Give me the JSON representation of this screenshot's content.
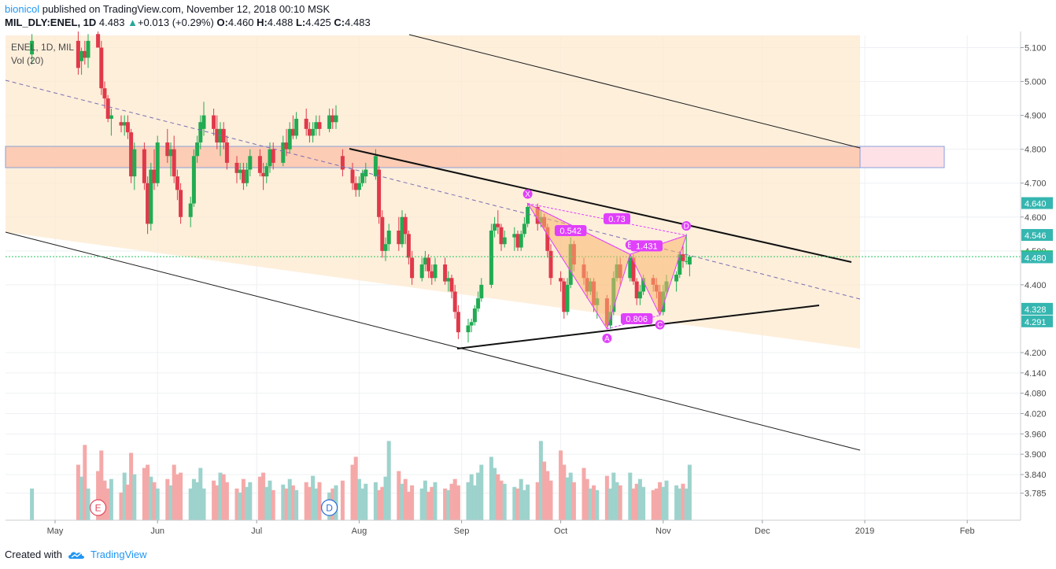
{
  "header": {
    "user": "bionicol",
    "published": "published on TradingView.com, November 12, 2018 00:10 MSK",
    "symbol": "MIL_DLY:ENEL, 1D",
    "last": "4.483",
    "change": "+0.013 (+0.29%)",
    "o_label": "O:",
    "o": "4.460",
    "h_label": "H:",
    "h": "4.488",
    "l_label": "L:",
    "l": "4.425",
    "c_label": "C:",
    "c": "4.483"
  },
  "footer": {
    "created": "Created with",
    "brand": "TradingView"
  },
  "chart_data": {
    "type": "candlestick",
    "legend": {
      "series": "ENEL, 1D, MIL",
      "volume": "Vol (20)"
    },
    "y_ticks": [
      "5.100",
      "5.000",
      "4.900",
      "4.800",
      "4.700",
      "4.600",
      "4.500",
      "4.400",
      "4.200",
      "4.140",
      "4.080",
      "4.020",
      "3.960",
      "3.900",
      "3.840",
      "3.785"
    ],
    "y_ticks_values": [
      5.1,
      5.0,
      4.9,
      4.8,
      4.7,
      4.6,
      4.5,
      4.4,
      4.2,
      4.14,
      4.08,
      4.02,
      3.96,
      3.9,
      3.84,
      3.785
    ],
    "price_badges": [
      {
        "label": "4.640",
        "value": 4.64
      },
      {
        "label": "4.546",
        "value": 4.546
      },
      {
        "label": "4.483",
        "value": 4.483
      },
      {
        "label": "4.480",
        "value": 4.48
      },
      {
        "label": "4.328",
        "value": 4.328
      },
      {
        "label": "4.291",
        "value": 4.291
      }
    ],
    "x_labels": [
      "May",
      "Jun",
      "Jul",
      "Aug",
      "Sep",
      "Oct",
      "Nov",
      "Dec",
      "2019",
      "Feb"
    ],
    "x_label_dates": [
      "2018-05-01",
      "2018-06-01",
      "2018-07-01",
      "2018-08-01",
      "2018-09-01",
      "2018-10-01",
      "2018-11-01",
      "2018-12-01",
      "2019-01-01",
      "2019-02-01"
    ],
    "last_price": 4.483,
    "harmonic": {
      "points": [
        {
          "label": "X",
          "date": "2018-09-21",
          "price": 4.64
        },
        {
          "label": "A",
          "date": "2018-10-15",
          "price": 4.27
        },
        {
          "label": "B",
          "date": "2018-10-22",
          "price": 4.49
        },
        {
          "label": "C",
          "date": "2018-10-31",
          "price": 4.31
        },
        {
          "label": "D",
          "date": "2018-11-08",
          "price": 4.546
        }
      ],
      "ratios": [
        {
          "label": "0.542",
          "date": "2018-10-04",
          "price": 4.56
        },
        {
          "label": "0.73",
          "date": "2018-10-18",
          "price": 4.595
        },
        {
          "label": "1.431",
          "date": "2018-10-27",
          "price": 4.515
        },
        {
          "label": "0.806",
          "date": "2018-10-24",
          "price": 4.3
        }
      ]
    },
    "events": [
      {
        "label": "E",
        "date": "2018-05-14"
      },
      {
        "label": "D",
        "date": "2018-07-23"
      }
    ],
    "candles": [
      {
        "d": "2018-04-24",
        "o": 5.08,
        "h": 5.14,
        "l": 5.05,
        "c": 5.12
      },
      {
        "d": "2018-05-08",
        "o": 5.12,
        "h": 5.16,
        "l": 5.02,
        "c": 5.04
      },
      {
        "d": "2018-05-09",
        "o": 5.06,
        "h": 5.1,
        "l": 5.02,
        "c": 5.09
      },
      {
        "d": "2018-05-10",
        "o": 5.09,
        "h": 5.12,
        "l": 5.05,
        "c": 5.07
      },
      {
        "d": "2018-05-11",
        "o": 5.07,
        "h": 5.14,
        "l": 5.04,
        "c": 5.12
      },
      {
        "d": "2018-05-14",
        "o": 5.14,
        "h": 5.16,
        "l": 5.1,
        "c": 5.1
      },
      {
        "d": "2018-05-15",
        "o": 5.1,
        "h": 5.12,
        "l": 4.96,
        "c": 4.98
      },
      {
        "d": "2018-05-16",
        "o": 4.98,
        "h": 5.0,
        "l": 4.92,
        "c": 4.95
      },
      {
        "d": "2018-05-17",
        "o": 4.95,
        "h": 4.96,
        "l": 4.88,
        "c": 4.89
      },
      {
        "d": "2018-05-18",
        "o": 4.89,
        "h": 4.92,
        "l": 4.84,
        "c": 4.9
      },
      {
        "d": "2018-05-21",
        "o": 4.88,
        "h": 4.9,
        "l": 4.85,
        "c": 4.87
      },
      {
        "d": "2018-05-22",
        "o": 4.87,
        "h": 4.9,
        "l": 4.84,
        "c": 4.88
      },
      {
        "d": "2018-05-23",
        "o": 4.88,
        "h": 4.9,
        "l": 4.83,
        "c": 4.85
      },
      {
        "d": "2018-05-24",
        "o": 4.85,
        "h": 4.86,
        "l": 4.7,
        "c": 4.72
      },
      {
        "d": "2018-05-25",
        "o": 4.72,
        "h": 4.82,
        "l": 4.68,
        "c": 4.8
      },
      {
        "d": "2018-05-28",
        "o": 4.8,
        "h": 4.82,
        "l": 4.68,
        "c": 4.7
      },
      {
        "d": "2018-05-29",
        "o": 4.7,
        "h": 4.72,
        "l": 4.55,
        "c": 4.58
      },
      {
        "d": "2018-05-30",
        "o": 4.58,
        "h": 4.76,
        "l": 4.56,
        "c": 4.74
      },
      {
        "d": "2018-05-31",
        "o": 4.74,
        "h": 4.8,
        "l": 4.68,
        "c": 4.7
      },
      {
        "d": "2018-06-01",
        "o": 4.7,
        "h": 4.84,
        "l": 4.69,
        "c": 4.82
      },
      {
        "d": "2018-06-04",
        "o": 4.82,
        "h": 4.86,
        "l": 4.76,
        "c": 4.78
      },
      {
        "d": "2018-06-05",
        "o": 4.78,
        "h": 4.82,
        "l": 4.72,
        "c": 4.8
      },
      {
        "d": "2018-06-06",
        "o": 4.8,
        "h": 4.84,
        "l": 4.7,
        "c": 4.72
      },
      {
        "d": "2018-06-07",
        "o": 4.72,
        "h": 4.74,
        "l": 4.65,
        "c": 4.68
      },
      {
        "d": "2018-06-08",
        "o": 4.68,
        "h": 4.7,
        "l": 4.58,
        "c": 4.6
      },
      {
        "d": "2018-06-11",
        "o": 4.6,
        "h": 4.66,
        "l": 4.57,
        "c": 4.64
      },
      {
        "d": "2018-06-12",
        "o": 4.64,
        "h": 4.8,
        "l": 4.63,
        "c": 4.78
      },
      {
        "d": "2018-06-13",
        "o": 4.78,
        "h": 4.84,
        "l": 4.76,
        "c": 4.82
      },
      {
        "d": "2018-06-14",
        "o": 4.82,
        "h": 4.9,
        "l": 4.8,
        "c": 4.88
      },
      {
        "d": "2018-06-15",
        "o": 4.86,
        "h": 4.94,
        "l": 4.84,
        "c": 4.9
      },
      {
        "d": "2018-06-18",
        "o": 4.9,
        "h": 4.92,
        "l": 4.84,
        "c": 4.86
      },
      {
        "d": "2018-06-19",
        "o": 4.86,
        "h": 4.9,
        "l": 4.8,
        "c": 4.82
      },
      {
        "d": "2018-06-20",
        "o": 4.82,
        "h": 4.88,
        "l": 4.78,
        "c": 4.86
      },
      {
        "d": "2018-06-21",
        "o": 4.86,
        "h": 4.88,
        "l": 4.8,
        "c": 4.82
      },
      {
        "d": "2018-06-22",
        "o": 4.82,
        "h": 4.84,
        "l": 4.74,
        "c": 4.76
      },
      {
        "d": "2018-06-25",
        "o": 4.76,
        "h": 4.78,
        "l": 4.7,
        "c": 4.73
      },
      {
        "d": "2018-06-26",
        "o": 4.73,
        "h": 4.76,
        "l": 4.71,
        "c": 4.74
      },
      {
        "d": "2018-06-27",
        "o": 4.74,
        "h": 4.76,
        "l": 4.68,
        "c": 4.7
      },
      {
        "d": "2018-06-28",
        "o": 4.7,
        "h": 4.76,
        "l": 4.69,
        "c": 4.74
      },
      {
        "d": "2018-06-29",
        "o": 4.74,
        "h": 4.8,
        "l": 4.72,
        "c": 4.78
      },
      {
        "d": "2018-07-02",
        "o": 4.78,
        "h": 4.8,
        "l": 4.72,
        "c": 4.73
      },
      {
        "d": "2018-07-03",
        "o": 4.73,
        "h": 4.76,
        "l": 4.68,
        "c": 4.72
      },
      {
        "d": "2018-07-04",
        "o": 4.72,
        "h": 4.76,
        "l": 4.7,
        "c": 4.75
      },
      {
        "d": "2018-07-05",
        "o": 4.75,
        "h": 4.82,
        "l": 4.73,
        "c": 4.8
      },
      {
        "d": "2018-07-06",
        "o": 4.8,
        "h": 4.82,
        "l": 4.74,
        "c": 4.76
      },
      {
        "d": "2018-07-09",
        "o": 4.76,
        "h": 4.84,
        "l": 4.75,
        "c": 4.82
      },
      {
        "d": "2018-07-10",
        "o": 4.82,
        "h": 4.86,
        "l": 4.78,
        "c": 4.8
      },
      {
        "d": "2018-07-11",
        "o": 4.8,
        "h": 4.88,
        "l": 4.79,
        "c": 4.86
      },
      {
        "d": "2018-07-12",
        "o": 4.86,
        "h": 4.9,
        "l": 4.83,
        "c": 4.84
      },
      {
        "d": "2018-07-13",
        "o": 4.84,
        "h": 4.91,
        "l": 4.83,
        "c": 4.89
      },
      {
        "d": "2018-07-16",
        "o": 4.89,
        "h": 4.92,
        "l": 4.84,
        "c": 4.86
      },
      {
        "d": "2018-07-17",
        "o": 4.86,
        "h": 4.88,
        "l": 4.82,
        "c": 4.84
      },
      {
        "d": "2018-07-18",
        "o": 4.84,
        "h": 4.88,
        "l": 4.82,
        "c": 4.86
      },
      {
        "d": "2018-07-19",
        "o": 4.86,
        "h": 4.9,
        "l": 4.84,
        "c": 4.88
      },
      {
        "d": "2018-07-20",
        "o": 4.88,
        "h": 4.9,
        "l": 4.84,
        "c": 4.86
      },
      {
        "d": "2018-07-23",
        "o": 4.86,
        "h": 4.92,
        "l": 4.85,
        "c": 4.9
      },
      {
        "d": "2018-07-24",
        "o": 4.9,
        "h": 4.92,
        "l": 4.86,
        "c": 4.88
      },
      {
        "d": "2018-07-25",
        "o": 4.88,
        "h": 4.93,
        "l": 4.86,
        "c": 4.9
      },
      {
        "d": "2018-07-27",
        "o": 4.78,
        "h": 4.8,
        "l": 4.72,
        "c": 4.74
      },
      {
        "d": "2018-07-30",
        "o": 4.74,
        "h": 4.76,
        "l": 4.68,
        "c": 4.7
      },
      {
        "d": "2018-07-31",
        "o": 4.7,
        "h": 4.72,
        "l": 4.66,
        "c": 4.68
      },
      {
        "d": "2018-08-01",
        "o": 4.68,
        "h": 4.72,
        "l": 4.66,
        "c": 4.7
      },
      {
        "d": "2018-08-02",
        "o": 4.7,
        "h": 4.74,
        "l": 4.69,
        "c": 4.73
      },
      {
        "d": "2018-08-03",
        "o": 4.72,
        "h": 4.76,
        "l": 4.7,
        "c": 4.74
      },
      {
        "d": "2018-08-06",
        "o": 4.72,
        "h": 4.8,
        "l": 4.71,
        "c": 4.78
      },
      {
        "d": "2018-08-07",
        "o": 4.74,
        "h": 4.75,
        "l": 4.58,
        "c": 4.6
      },
      {
        "d": "2018-08-08",
        "o": 4.6,
        "h": 4.62,
        "l": 4.48,
        "c": 4.5
      },
      {
        "d": "2018-08-09",
        "o": 4.5,
        "h": 4.54,
        "l": 4.47,
        "c": 4.52
      },
      {
        "d": "2018-08-10",
        "o": 4.52,
        "h": 4.58,
        "l": 4.5,
        "c": 4.56
      },
      {
        "d": "2018-08-13",
        "o": 4.56,
        "h": 4.6,
        "l": 4.5,
        "c": 4.52
      },
      {
        "d": "2018-08-14",
        "o": 4.52,
        "h": 4.62,
        "l": 4.51,
        "c": 4.6
      },
      {
        "d": "2018-08-15",
        "o": 4.6,
        "h": 4.61,
        "l": 4.52,
        "c": 4.55
      },
      {
        "d": "2018-08-16",
        "o": 4.55,
        "h": 4.56,
        "l": 4.46,
        "c": 4.48
      },
      {
        "d": "2018-08-17",
        "o": 4.48,
        "h": 4.5,
        "l": 4.4,
        "c": 4.42
      },
      {
        "d": "2018-08-20",
        "o": 4.42,
        "h": 4.48,
        "l": 4.41,
        "c": 4.46
      },
      {
        "d": "2018-08-21",
        "o": 4.46,
        "h": 4.5,
        "l": 4.44,
        "c": 4.48
      },
      {
        "d": "2018-08-22",
        "o": 4.48,
        "h": 4.49,
        "l": 4.42,
        "c": 4.44
      },
      {
        "d": "2018-08-23",
        "o": 4.44,
        "h": 4.46,
        "l": 4.4,
        "c": 4.42
      },
      {
        "d": "2018-08-24",
        "o": 4.42,
        "h": 4.48,
        "l": 4.41,
        "c": 4.46
      },
      {
        "d": "2018-08-27",
        "o": 4.46,
        "h": 4.48,
        "l": 4.4,
        "c": 4.41
      },
      {
        "d": "2018-08-28",
        "o": 4.41,
        "h": 4.44,
        "l": 4.38,
        "c": 4.42
      },
      {
        "d": "2018-08-29",
        "o": 4.42,
        "h": 4.43,
        "l": 4.36,
        "c": 4.38
      },
      {
        "d": "2018-08-30",
        "o": 4.38,
        "h": 4.4,
        "l": 4.3,
        "c": 4.32
      },
      {
        "d": "2018-08-31",
        "o": 4.32,
        "h": 4.34,
        "l": 4.24,
        "c": 4.26
      },
      {
        "d": "2018-09-03",
        "o": 4.26,
        "h": 4.3,
        "l": 4.23,
        "c": 4.28
      },
      {
        "d": "2018-09-04",
        "o": 4.28,
        "h": 4.3,
        "l": 4.26,
        "c": 4.29
      },
      {
        "d": "2018-09-05",
        "o": 4.29,
        "h": 4.34,
        "l": 4.28,
        "c": 4.33
      },
      {
        "d": "2018-09-06",
        "o": 4.33,
        "h": 4.38,
        "l": 4.32,
        "c": 4.36
      },
      {
        "d": "2018-09-07",
        "o": 4.36,
        "h": 4.42,
        "l": 4.35,
        "c": 4.4
      },
      {
        "d": "2018-09-10",
        "o": 4.4,
        "h": 4.58,
        "l": 4.39,
        "c": 4.56
      },
      {
        "d": "2018-09-11",
        "o": 4.56,
        "h": 4.6,
        "l": 4.54,
        "c": 4.58
      },
      {
        "d": "2018-09-12",
        "o": 4.58,
        "h": 4.62,
        "l": 4.55,
        "c": 4.57
      },
      {
        "d": "2018-09-13",
        "o": 4.57,
        "h": 4.58,
        "l": 4.5,
        "c": 4.52
      },
      {
        "d": "2018-09-14",
        "o": 4.52,
        "h": 4.56,
        "l": 4.51,
        "c": 4.54
      },
      {
        "d": "2018-09-17",
        "o": 4.54,
        "h": 4.57,
        "l": 4.5,
        "c": 4.55
      },
      {
        "d": "2018-09-18",
        "o": 4.55,
        "h": 4.56,
        "l": 4.5,
        "c": 4.51
      },
      {
        "d": "2018-09-19",
        "o": 4.51,
        "h": 4.56,
        "l": 4.5,
        "c": 4.55
      },
      {
        "d": "2018-09-20",
        "o": 4.55,
        "h": 4.6,
        "l": 4.54,
        "c": 4.58
      },
      {
        "d": "2018-09-21",
        "o": 4.58,
        "h": 4.64,
        "l": 4.57,
        "c": 4.63
      },
      {
        "d": "2018-09-24",
        "o": 4.63,
        "h": 4.64,
        "l": 4.56,
        "c": 4.58
      },
      {
        "d": "2018-09-25",
        "o": 4.58,
        "h": 4.62,
        "l": 4.57,
        "c": 4.6
      },
      {
        "d": "2018-09-26",
        "o": 4.6,
        "h": 4.61,
        "l": 4.56,
        "c": 4.57
      },
      {
        "d": "2018-09-27",
        "o": 4.57,
        "h": 4.58,
        "l": 4.48,
        "c": 4.5
      },
      {
        "d": "2018-09-28",
        "o": 4.5,
        "h": 4.52,
        "l": 4.4,
        "c": 4.42
      },
      {
        "d": "2018-10-01",
        "o": 4.42,
        "h": 4.44,
        "l": 4.38,
        "c": 4.41
      },
      {
        "d": "2018-10-02",
        "o": 4.41,
        "h": 4.42,
        "l": 4.3,
        "c": 4.32
      },
      {
        "d": "2018-10-03",
        "o": 4.32,
        "h": 4.42,
        "l": 4.31,
        "c": 4.4
      },
      {
        "d": "2018-10-04",
        "o": 4.4,
        "h": 4.54,
        "l": 4.39,
        "c": 4.52
      },
      {
        "d": "2018-10-05",
        "o": 4.52,
        "h": 4.53,
        "l": 4.44,
        "c": 4.46
      },
      {
        "d": "2018-10-08",
        "o": 4.46,
        "h": 4.48,
        "l": 4.4,
        "c": 4.42
      },
      {
        "d": "2018-10-09",
        "o": 4.42,
        "h": 4.44,
        "l": 4.36,
        "c": 4.38
      },
      {
        "d": "2018-10-10",
        "o": 4.38,
        "h": 4.42,
        "l": 4.37,
        "c": 4.41
      },
      {
        "d": "2018-10-11",
        "o": 4.41,
        "h": 4.42,
        "l": 4.32,
        "c": 4.34
      },
      {
        "d": "2018-10-12",
        "o": 4.34,
        "h": 4.38,
        "l": 4.3,
        "c": 4.36
      },
      {
        "d": "2018-10-15",
        "o": 4.36,
        "h": 4.37,
        "l": 4.27,
        "c": 4.28
      },
      {
        "d": "2018-10-16",
        "o": 4.28,
        "h": 4.34,
        "l": 4.27,
        "c": 4.32
      },
      {
        "d": "2018-10-17",
        "o": 4.32,
        "h": 4.44,
        "l": 4.31,
        "c": 4.42
      },
      {
        "d": "2018-10-18",
        "o": 4.42,
        "h": 4.48,
        "l": 4.41,
        "c": 4.46
      },
      {
        "d": "2018-10-19",
        "o": 4.46,
        "h": 4.48,
        "l": 4.4,
        "c": 4.42
      },
      {
        "d": "2018-10-22",
        "o": 4.42,
        "h": 4.49,
        "l": 4.41,
        "c": 4.48
      },
      {
        "d": "2018-10-23",
        "o": 4.48,
        "h": 4.49,
        "l": 4.4,
        "c": 4.41
      },
      {
        "d": "2018-10-24",
        "o": 4.41,
        "h": 4.42,
        "l": 4.34,
        "c": 4.36
      },
      {
        "d": "2018-10-25",
        "o": 4.36,
        "h": 4.4,
        "l": 4.34,
        "c": 4.38
      },
      {
        "d": "2018-10-26",
        "o": 4.38,
        "h": 4.43,
        "l": 4.37,
        "c": 4.42
      },
      {
        "d": "2018-10-29",
        "o": 4.42,
        "h": 4.43,
        "l": 4.38,
        "c": 4.4
      },
      {
        "d": "2018-10-30",
        "o": 4.4,
        "h": 4.42,
        "l": 4.36,
        "c": 4.38
      },
      {
        "d": "2018-10-31",
        "o": 4.38,
        "h": 4.4,
        "l": 4.31,
        "c": 4.32
      },
      {
        "d": "2018-11-01",
        "o": 4.32,
        "h": 4.4,
        "l": 4.31,
        "c": 4.38
      },
      {
        "d": "2018-11-02",
        "o": 4.38,
        "h": 4.43,
        "l": 4.37,
        "c": 4.41
      },
      {
        "d": "2018-11-05",
        "o": 4.41,
        "h": 4.44,
        "l": 4.38,
        "c": 4.43
      },
      {
        "d": "2018-11-06",
        "o": 4.43,
        "h": 4.5,
        "l": 4.42,
        "c": 4.49
      },
      {
        "d": "2018-11-07",
        "o": 4.49,
        "h": 4.52,
        "l": 4.45,
        "c": 4.47
      },
      {
        "d": "2018-11-08",
        "o": 4.47,
        "h": 4.55,
        "l": 4.46,
        "c": 4.47
      },
      {
        "d": "2018-11-09",
        "o": 4.46,
        "h": 4.488,
        "l": 4.425,
        "c": 4.483
      }
    ]
  }
}
